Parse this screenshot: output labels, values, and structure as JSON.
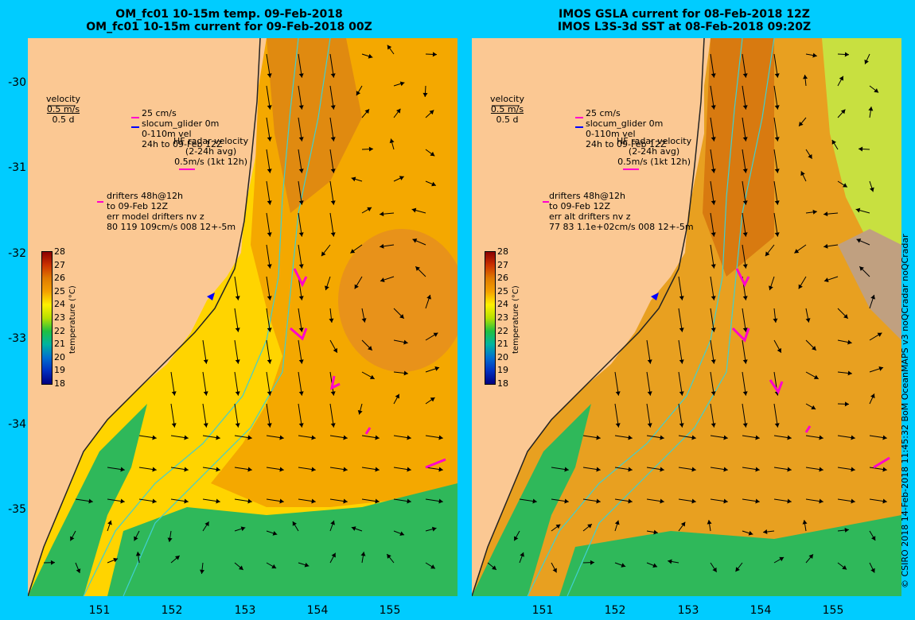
{
  "titles": {
    "left": [
      "OM_fc01 10-15m temp. 09-Feb-2018",
      "OM_fc01 10-15m current for 09-Feb-2018 00Z"
    ],
    "right": [
      "IMOS GSLA current for 08-Feb-2018 12Z",
      "IMOS L3S-3d SST at 08-Feb-2018 09:20Z"
    ]
  },
  "axes": {
    "y_ticks": [
      "-30",
      "-31",
      "-32",
      "-33",
      "-34",
      "-35"
    ],
    "y_values": [
      -30,
      -31,
      -32,
      -33,
      -34,
      -35
    ],
    "x_ticks": [
      "151",
      "152",
      "153",
      "154",
      "155"
    ],
    "x_values": [
      151,
      152,
      153,
      154,
      155
    ]
  },
  "legend": {
    "velocity_title": "velocity",
    "velocity_scale": "0.5 m/s",
    "velocity_time": "0.5 d",
    "speed_25": "25 cm/s",
    "glider": "slocum_glider 0m",
    "depth": "0-110m vel",
    "period": "24h to 09-Feb 12Z",
    "hf_radar": "HF radar velocity",
    "avg": "(2-24h avg)",
    "hf_scale": "0.5m/s (1kt 12h)",
    "drifters": "drifters 48h@12h",
    "drift_to": "to 09-Feb 12Z"
  },
  "left_stats": {
    "line1": "err model drifters nv z",
    "line2": "80 119 109cm/s 008 12+-5m"
  },
  "right_stats": {
    "line1": "err alt drifters nv z",
    "line2": "77 83 1.1e+02cm/s 008 12+-5m"
  },
  "colorbar": {
    "label": "temperature (°C)",
    "ticks": [
      "28",
      "27",
      "26",
      "25",
      "24",
      "23",
      "22",
      "21",
      "20",
      "19",
      "18"
    ],
    "colors": [
      "#8b0000",
      "#cc3300",
      "#e07b00",
      "#f4a000",
      "#fff000",
      "#b8e000",
      "#20c040",
      "#00b4a0",
      "#0070d0",
      "#0030c0",
      "#000080"
    ]
  },
  "colors": {
    "land": "#fbc893",
    "ocean_background": "#00ccff",
    "warm_water": "#ef9a00",
    "green_water": "#2fb85a",
    "contour": "#40d0d0",
    "drifter": "#ff00cc",
    "glider": "#0000ff",
    "missing_data": "#c0a080"
  },
  "credit": "© CSIRO 2018   14-Feb-2018 11:45:32 BoM OceanMAPS v3 noQCradar noQCradar"
}
